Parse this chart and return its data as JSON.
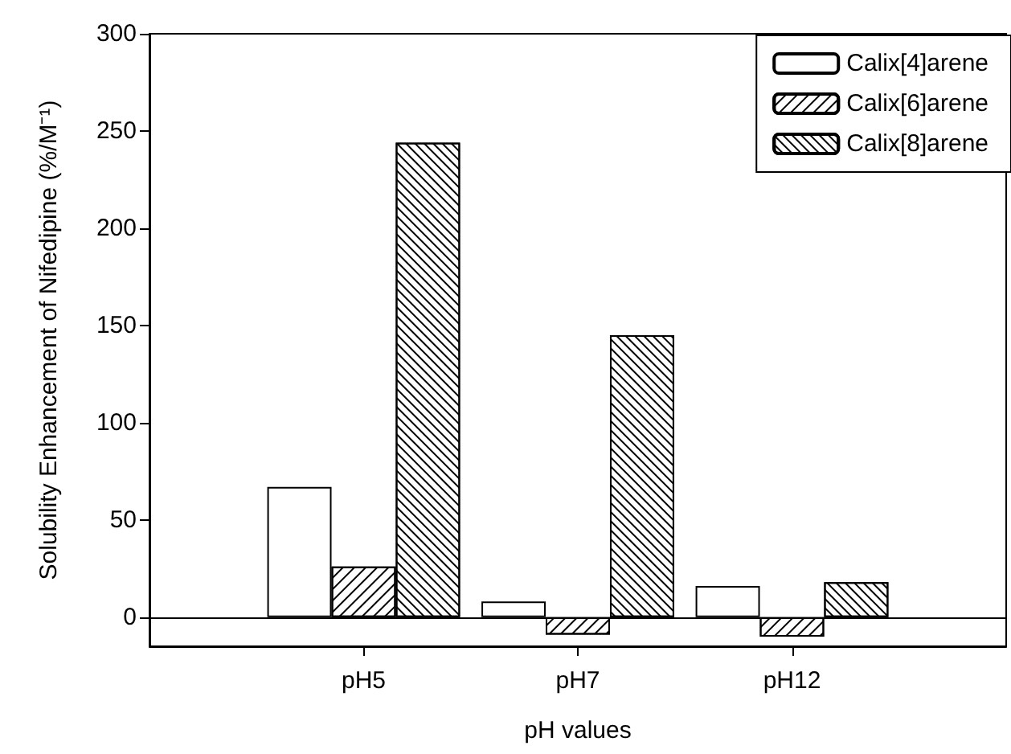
{
  "chart_data": {
    "type": "bar",
    "xlabel": "pH values",
    "ylabel": "Solubility Enhancement of Nifedipine (%/M⁻¹)",
    "categories": [
      null,
      "pH5",
      "pH7",
      "pH12",
      null
    ],
    "series": [
      {
        "name": "Calix[4]arene",
        "color": "#ffffff",
        "values": [
          null,
          67,
          8,
          16,
          null
        ]
      },
      {
        "name": "Calix[6]arene",
        "color": "#ffffff",
        "values": [
          null,
          26,
          -9,
          -10,
          null
        ]
      },
      {
        "name": "Calix[8]arene",
        "color": "#ffffff",
        "values": [
          null,
          244,
          145,
          18,
          null
        ]
      }
    ],
    "ylim": [
      -15,
      300
    ],
    "yticks": [
      0,
      50,
      100,
      150,
      200,
      250,
      300
    ],
    "ref_lines": [
      {
        "axis": "y",
        "value": 0,
        "color": "#000000"
      }
    ],
    "legend": "top right"
  }
}
